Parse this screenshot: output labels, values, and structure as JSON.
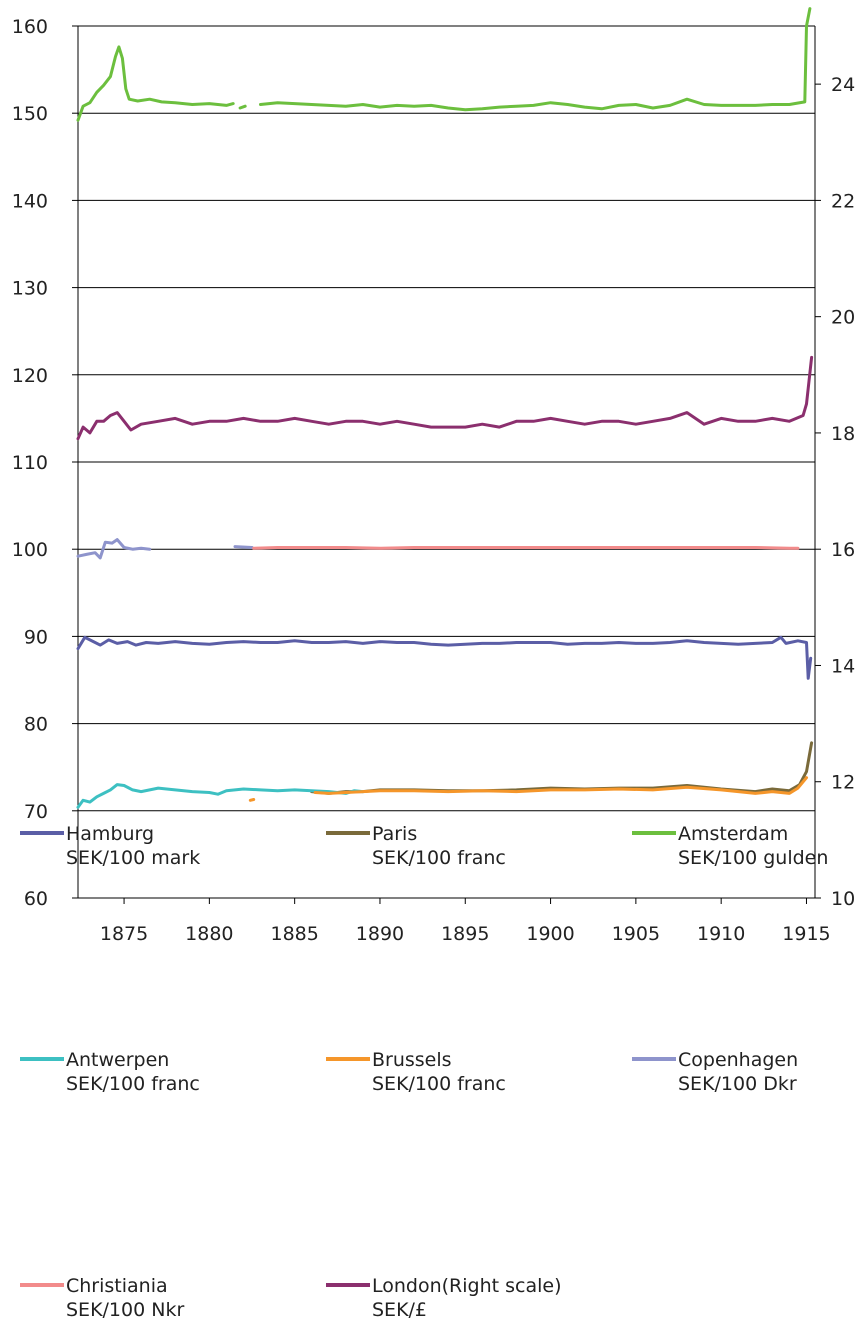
{
  "chart_data": {
    "type": "line",
    "x_range": [
      1872.3,
      1915.5
    ],
    "x_ticks": [
      1875,
      1880,
      1885,
      1890,
      1895,
      1900,
      1905,
      1910,
      1915
    ],
    "x_tick_labels": [
      "1875",
      "1880",
      "1885",
      "1890",
      "1895",
      "1900",
      "1905",
      "1910",
      "1915"
    ],
    "y_left": {
      "range": [
        60,
        160
      ],
      "ticks": [
        60,
        70,
        80,
        90,
        100,
        110,
        120,
        130,
        140,
        150,
        160
      ],
      "tick_labels": [
        "60",
        "70",
        "80",
        "90",
        "100",
        "110",
        "120",
        "130",
        "140",
        "150",
        "160"
      ]
    },
    "y_right": {
      "range": [
        10,
        25
      ],
      "ticks": [
        10,
        12,
        14,
        16,
        18,
        20,
        22,
        24
      ],
      "tick_labels": [
        "10",
        "12",
        "14",
        "16",
        "18",
        "20",
        "22",
        "24"
      ]
    },
    "grid": "horizontal",
    "legend_position": "bottom",
    "series": [
      {
        "name": "Hamburg",
        "unit": "SEK/100 mark",
        "color": "#5b5ea6",
        "axis": "left",
        "points": [
          [
            1872.3,
            88.6
          ],
          [
            1872.7,
            89.9
          ],
          [
            1873.2,
            89.4
          ],
          [
            1873.6,
            89.0
          ],
          [
            1874.1,
            89.6
          ],
          [
            1874.6,
            89.2
          ],
          [
            1875.2,
            89.4
          ],
          [
            1875.7,
            89.0
          ],
          [
            1876.3,
            89.3
          ],
          [
            1877.0,
            89.2
          ],
          [
            1878.0,
            89.4
          ],
          [
            1879.0,
            89.2
          ],
          [
            1880.0,
            89.1
          ],
          [
            1881.0,
            89.3
          ],
          [
            1882.0,
            89.4
          ],
          [
            1883.0,
            89.3
          ],
          [
            1884.0,
            89.3
          ],
          [
            1885.0,
            89.5
          ],
          [
            1886.0,
            89.3
          ],
          [
            1887.0,
            89.3
          ],
          [
            1888.0,
            89.4
          ],
          [
            1889.0,
            89.2
          ],
          [
            1890.0,
            89.4
          ],
          [
            1891.0,
            89.3
          ],
          [
            1892.0,
            89.3
          ],
          [
            1893.0,
            89.1
          ],
          [
            1894.0,
            89.0
          ],
          [
            1895.0,
            89.1
          ],
          [
            1896.0,
            89.2
          ],
          [
            1897.0,
            89.2
          ],
          [
            1898.0,
            89.3
          ],
          [
            1899.0,
            89.3
          ],
          [
            1900.0,
            89.3
          ],
          [
            1901.0,
            89.1
          ],
          [
            1902.0,
            89.2
          ],
          [
            1903.0,
            89.2
          ],
          [
            1904.0,
            89.3
          ],
          [
            1905.0,
            89.2
          ],
          [
            1906.0,
            89.2
          ],
          [
            1907.0,
            89.3
          ],
          [
            1908.0,
            89.5
          ],
          [
            1909.0,
            89.3
          ],
          [
            1910.0,
            89.2
          ],
          [
            1911.0,
            89.1
          ],
          [
            1912.0,
            89.2
          ],
          [
            1913.0,
            89.3
          ],
          [
            1913.5,
            89.9
          ],
          [
            1913.8,
            89.2
          ],
          [
            1914.5,
            89.5
          ],
          [
            1915.0,
            89.3
          ],
          [
            1915.1,
            85.2
          ],
          [
            1915.25,
            87.5
          ]
        ]
      },
      {
        "name": "Paris",
        "unit": "SEK/100 franc",
        "color": "#7a6a3a",
        "axis": "left",
        "points": [
          [
            1886.0,
            72.2
          ],
          [
            1887.0,
            72.0
          ],
          [
            1888.0,
            72.2
          ],
          [
            1889.0,
            72.2
          ],
          [
            1890.0,
            72.4
          ],
          [
            1892.0,
            72.4
          ],
          [
            1894.0,
            72.3
          ],
          [
            1896.0,
            72.3
          ],
          [
            1898.0,
            72.4
          ],
          [
            1900.0,
            72.6
          ],
          [
            1902.0,
            72.5
          ],
          [
            1904.0,
            72.6
          ],
          [
            1906.0,
            72.6
          ],
          [
            1908.0,
            72.9
          ],
          [
            1910.0,
            72.5
          ],
          [
            1912.0,
            72.2
          ],
          [
            1913.0,
            72.5
          ],
          [
            1914.0,
            72.3
          ],
          [
            1914.6,
            73.0
          ],
          [
            1915.0,
            74.5
          ],
          [
            1915.3,
            77.8
          ]
        ]
      },
      {
        "name": "Amsterdam",
        "unit": "SEK/100 gulden",
        "color": "#6cbf3e",
        "axis": "left",
        "points": [
          [
            1872.3,
            149.2
          ],
          [
            1872.6,
            150.8
          ],
          [
            1873.0,
            151.2
          ],
          [
            1873.4,
            152.4
          ],
          [
            1873.8,
            153.2
          ],
          [
            1874.2,
            154.2
          ],
          [
            1874.5,
            156.5
          ],
          [
            1874.7,
            157.6
          ],
          [
            1874.9,
            156.3
          ],
          [
            1875.1,
            152.8
          ],
          [
            1875.3,
            151.6
          ],
          [
            1875.8,
            151.4
          ],
          [
            1876.5,
            151.6
          ],
          [
            1877.2,
            151.3
          ],
          [
            1878.0,
            151.2
          ],
          [
            1879.0,
            151.0
          ],
          [
            1880.0,
            151.1
          ],
          [
            1881.0,
            150.9
          ],
          [
            1881.4,
            151.1
          ],
          [
            null,
            null
          ],
          [
            1881.8,
            150.6
          ],
          [
            1882.1,
            150.8
          ],
          [
            null,
            null
          ],
          [
            1883.0,
            151.0
          ],
          [
            1884.0,
            151.2
          ],
          [
            1885.0,
            151.1
          ],
          [
            1886.0,
            151.0
          ],
          [
            1887.0,
            150.9
          ],
          [
            1888.0,
            150.8
          ],
          [
            1889.0,
            151.0
          ],
          [
            1890.0,
            150.7
          ],
          [
            1891.0,
            150.9
          ],
          [
            1892.0,
            150.8
          ],
          [
            1893.0,
            150.9
          ],
          [
            1894.0,
            150.6
          ],
          [
            1895.0,
            150.4
          ],
          [
            1896.0,
            150.5
          ],
          [
            1897.0,
            150.7
          ],
          [
            1898.0,
            150.8
          ],
          [
            1899.0,
            150.9
          ],
          [
            1900.0,
            151.2
          ],
          [
            1901.0,
            151.0
          ],
          [
            1902.0,
            150.7
          ],
          [
            1903.0,
            150.5
          ],
          [
            1904.0,
            150.9
          ],
          [
            1905.0,
            151.0
          ],
          [
            1906.0,
            150.6
          ],
          [
            1907.0,
            150.9
          ],
          [
            1908.0,
            151.6
          ],
          [
            1909.0,
            151.0
          ],
          [
            1910.0,
            150.9
          ],
          [
            1911.0,
            150.9
          ],
          [
            1912.0,
            150.9
          ],
          [
            1913.0,
            151.0
          ],
          [
            1914.0,
            151.0
          ],
          [
            1914.9,
            151.3
          ],
          [
            1915.0,
            160.0
          ],
          [
            1915.2,
            162.0
          ]
        ]
      },
      {
        "name": "Antwerpen",
        "unit": "SEK/100 franc",
        "color": "#3dc0c2",
        "axis": "left",
        "points": [
          [
            1872.3,
            70.4
          ],
          [
            1872.6,
            71.2
          ],
          [
            1873.0,
            71.0
          ],
          [
            1873.4,
            71.6
          ],
          [
            1873.8,
            72.0
          ],
          [
            1874.2,
            72.4
          ],
          [
            1874.6,
            73.0
          ],
          [
            1875.0,
            72.9
          ],
          [
            1875.5,
            72.4
          ],
          [
            1876.0,
            72.2
          ],
          [
            1876.5,
            72.4
          ],
          [
            1877.0,
            72.6
          ],
          [
            1878.0,
            72.4
          ],
          [
            1879.0,
            72.2
          ],
          [
            1880.0,
            72.1
          ],
          [
            1880.5,
            71.9
          ],
          [
            1881.0,
            72.3
          ],
          [
            1882.0,
            72.5
          ],
          [
            1883.0,
            72.4
          ],
          [
            1884.0,
            72.3
          ],
          [
            1885.0,
            72.4
          ],
          [
            1886.0,
            72.3
          ],
          [
            1887.0,
            72.2
          ],
          [
            1888.0,
            72.0
          ],
          [
            1888.5,
            72.3
          ],
          [
            1889.0,
            72.2
          ]
        ]
      },
      {
        "name": "Brussels",
        "unit": "SEK/100 franc",
        "color": "#f5962a",
        "axis": "left",
        "points": [
          [
            1882.4,
            71.2
          ],
          [
            1882.6,
            71.3
          ],
          [
            null,
            null
          ],
          [
            1886.2,
            72.1
          ],
          [
            1887.0,
            72.0
          ],
          [
            1888.0,
            72.1
          ],
          [
            1889.0,
            72.2
          ],
          [
            1890.0,
            72.3
          ],
          [
            1892.0,
            72.3
          ],
          [
            1894.0,
            72.2
          ],
          [
            1896.0,
            72.3
          ],
          [
            1898.0,
            72.2
          ],
          [
            1900.0,
            72.4
          ],
          [
            1902.0,
            72.4
          ],
          [
            1904.0,
            72.5
          ],
          [
            1906.0,
            72.4
          ],
          [
            1908.0,
            72.7
          ],
          [
            1910.0,
            72.4
          ],
          [
            1912.0,
            72.0
          ],
          [
            1913.0,
            72.2
          ],
          [
            1914.0,
            72.0
          ],
          [
            1914.5,
            72.6
          ],
          [
            1915.0,
            73.8
          ]
        ]
      },
      {
        "name": "Copenhagen",
        "unit": "SEK/100 Dkr",
        "color": "#8e94cc",
        "axis": "left",
        "points": [
          [
            1872.3,
            99.2
          ],
          [
            1872.8,
            99.4
          ],
          [
            1873.3,
            99.6
          ],
          [
            1873.6,
            99.0
          ],
          [
            1873.9,
            100.8
          ],
          [
            1874.3,
            100.7
          ],
          [
            1874.6,
            101.1
          ],
          [
            1875.0,
            100.2
          ],
          [
            1875.5,
            100.0
          ],
          [
            1876.0,
            100.1
          ],
          [
            1876.5,
            100.0
          ],
          [
            null,
            null
          ],
          [
            1881.5,
            100.3
          ],
          [
            1882.5,
            100.2
          ]
        ]
      },
      {
        "name": "Christiania",
        "unit": "SEK/100 Nkr",
        "color": "#f28b8b",
        "axis": "left",
        "points": [
          [
            1882.6,
            100.1
          ],
          [
            1884.0,
            100.2
          ],
          [
            1886.0,
            100.2
          ],
          [
            1888.0,
            100.2
          ],
          [
            1890.0,
            100.1
          ],
          [
            1892.0,
            100.2
          ],
          [
            1894.0,
            100.2
          ],
          [
            1896.0,
            100.2
          ],
          [
            1898.0,
            100.2
          ],
          [
            1900.0,
            100.2
          ],
          [
            1902.0,
            100.2
          ],
          [
            1904.0,
            100.2
          ],
          [
            1906.0,
            100.2
          ],
          [
            1908.0,
            100.2
          ],
          [
            1910.0,
            100.2
          ],
          [
            1912.0,
            100.2
          ],
          [
            1914.0,
            100.1
          ],
          [
            1914.5,
            100.1
          ]
        ]
      },
      {
        "name": "London(Right scale)",
        "unit": "SEK/£",
        "color": "#8b2f6e",
        "axis": "right",
        "points": [
          [
            1872.3,
            17.9
          ],
          [
            1872.6,
            18.1
          ],
          [
            1873.0,
            18.0
          ],
          [
            1873.4,
            18.2
          ],
          [
            1873.8,
            18.2
          ],
          [
            1874.2,
            18.3
          ],
          [
            1874.6,
            18.35
          ],
          [
            1875.0,
            18.2
          ],
          [
            1875.4,
            18.05
          ],
          [
            1876.0,
            18.15
          ],
          [
            1877.0,
            18.2
          ],
          [
            1878.0,
            18.25
          ],
          [
            1879.0,
            18.15
          ],
          [
            1880.0,
            18.2
          ],
          [
            1881.0,
            18.2
          ],
          [
            1882.0,
            18.25
          ],
          [
            1883.0,
            18.2
          ],
          [
            1884.0,
            18.2
          ],
          [
            1885.0,
            18.25
          ],
          [
            1886.0,
            18.2
          ],
          [
            1887.0,
            18.15
          ],
          [
            1888.0,
            18.2
          ],
          [
            1889.0,
            18.2
          ],
          [
            1890.0,
            18.15
          ],
          [
            1891.0,
            18.2
          ],
          [
            1892.0,
            18.15
          ],
          [
            1893.0,
            18.1
          ],
          [
            1894.0,
            18.1
          ],
          [
            1895.0,
            18.1
          ],
          [
            1896.0,
            18.15
          ],
          [
            1897.0,
            18.1
          ],
          [
            1898.0,
            18.2
          ],
          [
            1899.0,
            18.2
          ],
          [
            1900.0,
            18.25
          ],
          [
            1901.0,
            18.2
          ],
          [
            1902.0,
            18.15
          ],
          [
            1903.0,
            18.2
          ],
          [
            1904.0,
            18.2
          ],
          [
            1905.0,
            18.15
          ],
          [
            1906.0,
            18.2
          ],
          [
            1907.0,
            18.25
          ],
          [
            1908.0,
            18.35
          ],
          [
            1909.0,
            18.15
          ],
          [
            1910.0,
            18.25
          ],
          [
            1911.0,
            18.2
          ],
          [
            1912.0,
            18.2
          ],
          [
            1913.0,
            18.25
          ],
          [
            1914.0,
            18.2
          ],
          [
            1914.8,
            18.3
          ],
          [
            1915.0,
            18.5
          ],
          [
            1915.3,
            19.3
          ]
        ]
      }
    ]
  },
  "legend": [
    {
      "name": "Hamburg",
      "unit": "SEK/100 mark",
      "color": "#5b5ea6"
    },
    {
      "name": "Paris",
      "unit": "SEK/100 franc",
      "color": "#7a6a3a"
    },
    {
      "name": "Amsterdam",
      "unit": "SEK/100 gulden",
      "color": "#6cbf3e"
    },
    {
      "name": "Antwerpen",
      "unit": "SEK/100 franc",
      "color": "#3dc0c2"
    },
    {
      "name": "Brussels",
      "unit": "SEK/100 franc",
      "color": "#f5962a"
    },
    {
      "name": "Copenhagen",
      "unit": "SEK/100 Dkr",
      "color": "#8e94cc"
    },
    {
      "name": "Christiania",
      "unit": "SEK/100 Nkr",
      "color": "#f28b8b"
    },
    {
      "name": "London(Right scale)",
      "unit": "SEK/£",
      "color": "#8b2f6e"
    }
  ]
}
